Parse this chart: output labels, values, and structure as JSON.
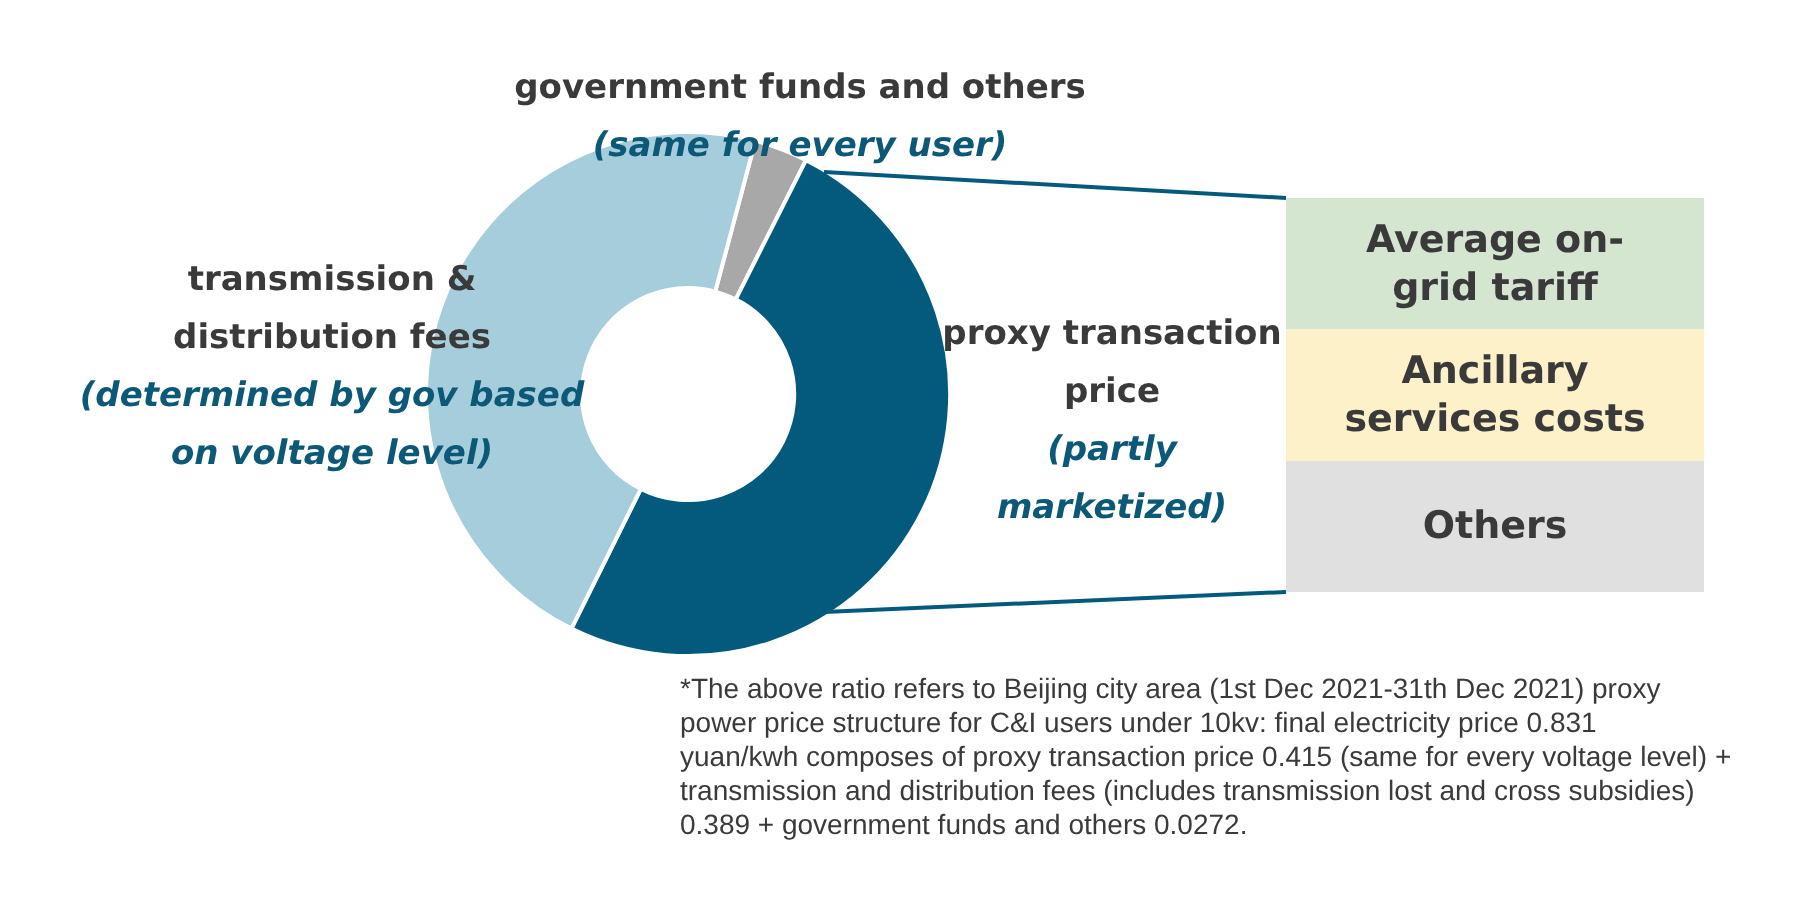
{
  "chart_data": [
    {
      "type": "donut",
      "categories": [
        "government funds and others",
        "proxy transaction price",
        "transmission & distribution fees"
      ],
      "values": [
        3.3,
        49.9,
        46.8
      ],
      "colors": [
        "#a8a8a8",
        "#035a7c",
        "#a5cddc"
      ],
      "annotations": [
        "(same for every user)",
        "(partly marketized)",
        "(determined by gov based on voltage level)",
        "*The above ratio refers to Beijing city area (1st Dec 2021-31th Dec 2021) proxy power price structure for C&I users under 10kv: final electricity price 0.831 yuan/kwh composes of proxy transaction price 0.415 (same for every voltage level) + transmission and distribution fees (includes transmission lost and cross subsidies) 0.389 + government funds and others 0.0272."
      ]
    },
    {
      "type": "other",
      "categories": [
        "Average on-grid tariff",
        "Ancillary services costs",
        "Others"
      ],
      "colors": [
        "#d4e5d0",
        "#fdf1c9",
        "#e0e0e0"
      ]
    }
  ]
}
